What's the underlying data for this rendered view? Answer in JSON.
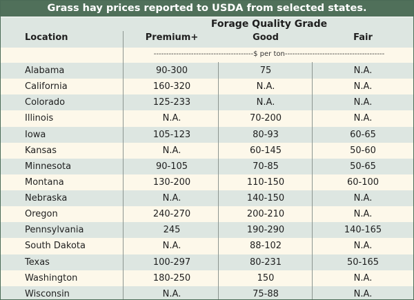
{
  "title": "Grass hay prices reported to USDA from selected states.",
  "header": {
    "group_label": "Forage Quality Grade",
    "location_label": "Location",
    "columns": [
      "Premium+",
      "Good",
      "Fair"
    ]
  },
  "units_label": "----------------------------------------$ per ton----------------------------------------",
  "rows": [
    {
      "location": "Alabama",
      "premium": "90-300",
      "good": "75",
      "fair": "N.A."
    },
    {
      "location": "California",
      "premium": "160-320",
      "good": "N.A.",
      "fair": "N.A."
    },
    {
      "location": "Colorado",
      "premium": "125-233",
      "good": "N.A.",
      "fair": "N.A."
    },
    {
      "location": "Illinois",
      "premium": "N.A.",
      "good": "70-200",
      "fair": "N.A."
    },
    {
      "location": "Iowa",
      "premium": "105-123",
      "good": "80-93",
      "fair": "60-65"
    },
    {
      "location": "Kansas",
      "premium": "N.A.",
      "good": "60-145",
      "fair": "50-60"
    },
    {
      "location": "Minnesota",
      "premium": "90-105",
      "good": "70-85",
      "fair": "50-65"
    },
    {
      "location": "Montana",
      "premium": "130-200",
      "good": "110-150",
      "fair": "60-100"
    },
    {
      "location": "Nebraska",
      "premium": "N.A.",
      "good": "140-150",
      "fair": "N.A."
    },
    {
      "location": "Oregon",
      "premium": "240-270",
      "good": "200-210",
      "fair": "N.A."
    },
    {
      "location": "Pennsylvania",
      "premium": "245",
      "good": "190-290",
      "fair": "140-165"
    },
    {
      "location": "South Dakota",
      "premium": "N.A.",
      "good": "88-102",
      "fair": "N.A."
    },
    {
      "location": "Texas",
      "premium": "100-297",
      "good": "80-231",
      "fair": "50-165"
    },
    {
      "location": "Washington",
      "premium": "180-250",
      "good": "150",
      "fair": "N.A."
    },
    {
      "location": "Wisconsin",
      "premium": "N.A.",
      "good": "75-88",
      "fair": "N.A."
    }
  ],
  "colors": {
    "title_bar": "#50705a",
    "row_green": "#dde6e1",
    "row_cream": "#fdf8ea"
  }
}
